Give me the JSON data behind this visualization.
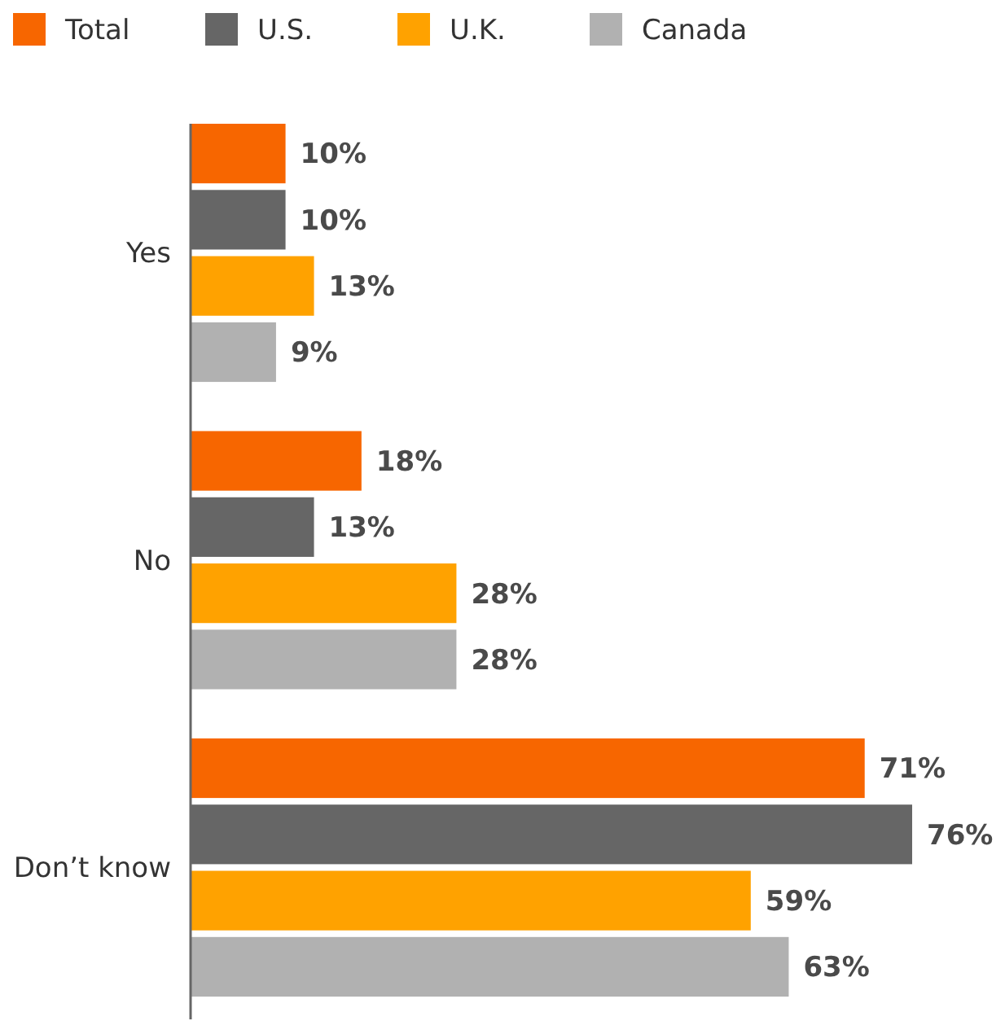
{
  "chart_data": {
    "type": "bar",
    "orientation": "horizontal",
    "categories": [
      "Yes",
      "No",
      "Don’t know"
    ],
    "legend": "top left",
    "series": [
      {
        "name": "Total",
        "color": "#f76600",
        "values": [
          10,
          18,
          71
        ],
        "value_labels": [
          "10%",
          "18%",
          "71%"
        ]
      },
      {
        "name": "U.S.",
        "color": "#666666",
        "values": [
          10,
          13,
          76
        ],
        "value_labels": [
          "10%",
          "13%",
          "76%"
        ]
      },
      {
        "name": "U.K.",
        "color": "#ffa200",
        "values": [
          13,
          28,
          59
        ],
        "value_labels": [
          "13%",
          "28%",
          "59%"
        ]
      },
      {
        "name": "Canada",
        "color": "#b1b1b1",
        "values": [
          9,
          28,
          63
        ],
        "value_labels": [
          "9%",
          "28%",
          "63%"
        ]
      }
    ]
  }
}
